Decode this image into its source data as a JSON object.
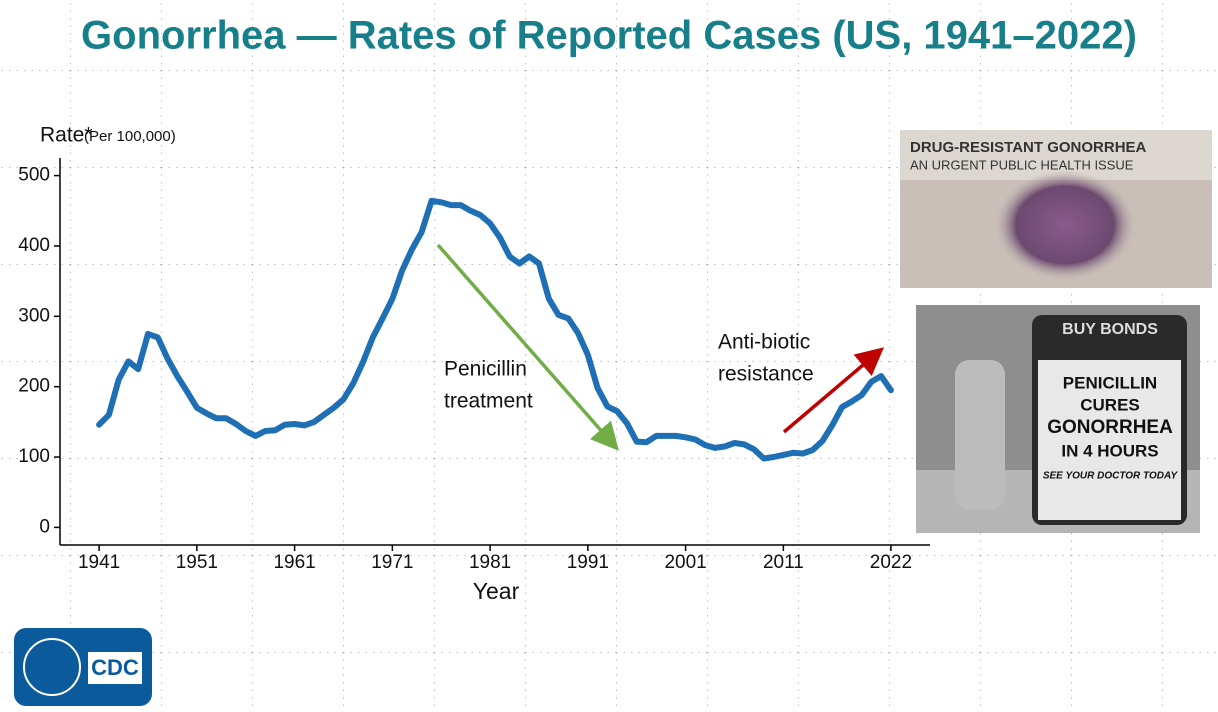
{
  "chart_data": {
    "type": "line",
    "title": "Gonorrhea — Rates of Reported Cases (US, 1941–2022)",
    "y_label": "Rate*",
    "y_label_unit": "(Per 100,000)",
    "x_label": "Year",
    "x": [
      1941,
      1942,
      1943,
      1944,
      1945,
      1946,
      1947,
      1948,
      1949,
      1950,
      1951,
      1952,
      1953,
      1954,
      1955,
      1956,
      1957,
      1958,
      1959,
      1960,
      1961,
      1962,
      1963,
      1964,
      1965,
      1966,
      1967,
      1968,
      1969,
      1970,
      1971,
      1972,
      1973,
      1974,
      1975,
      1976,
      1977,
      1978,
      1979,
      1980,
      1981,
      1982,
      1983,
      1984,
      1985,
      1986,
      1987,
      1988,
      1989,
      1990,
      1991,
      1992,
      1993,
      1994,
      1995,
      1996,
      1997,
      1998,
      1999,
      2000,
      2001,
      2002,
      2003,
      2004,
      2005,
      2006,
      2007,
      2008,
      2009,
      2010,
      2011,
      2012,
      2013,
      2014,
      2015,
      2016,
      2017,
      2018,
      2019,
      2020,
      2021,
      2022
    ],
    "series": [
      {
        "name": "Rate",
        "color": "#1f6fb4",
        "values": [
          146,
          160,
          210,
          236,
          225,
          275,
          270,
          240,
          215,
          193,
          170,
          162,
          155,
          155,
          147,
          137,
          130,
          137,
          138,
          146,
          147,
          145,
          150,
          160,
          170,
          182,
          205,
          235,
          270,
          297,
          325,
          365,
          395,
          420,
          464,
          462,
          458,
          458,
          450,
          444,
          432,
          412,
          385,
          375,
          385,
          375,
          325,
          302,
          297,
          276,
          245,
          198,
          172,
          165,
          148,
          122,
          121,
          130,
          130,
          130,
          128,
          125,
          117,
          113,
          115,
          120,
          118,
          111,
          98,
          100,
          103,
          106,
          105,
          110,
          123,
          145,
          171,
          179,
          188,
          207,
          215,
          195
        ]
      }
    ],
    "xlim": [
      1937,
      2026
    ],
    "ylim": [
      -25,
      525
    ],
    "xticks": [
      1941,
      1951,
      1961,
      1971,
      1981,
      1991,
      2001,
      2011,
      2022
    ],
    "yticks": [
      0,
      100,
      200,
      300,
      400,
      500
    ],
    "annotations": [
      {
        "lines": [
          "Penicillin",
          "treatment"
        ],
        "color": "#70ad47"
      },
      {
        "lines": [
          "Anti-biotic",
          "resistance"
        ],
        "color": "#c00000"
      }
    ],
    "images": [
      {
        "lines": [
          "DRUG-RESISTANT GONORRHEA",
          "AN URGENT PUBLIC HEALTH ISSUE"
        ]
      },
      {
        "lines": [
          "BUY BONDS",
          "PENICILLIN",
          "CURES",
          "GONORRHEA",
          "IN 4 HOURS",
          "SEE YOUR DOCTOR TODAY"
        ]
      }
    ],
    "logo": "CDC"
  }
}
